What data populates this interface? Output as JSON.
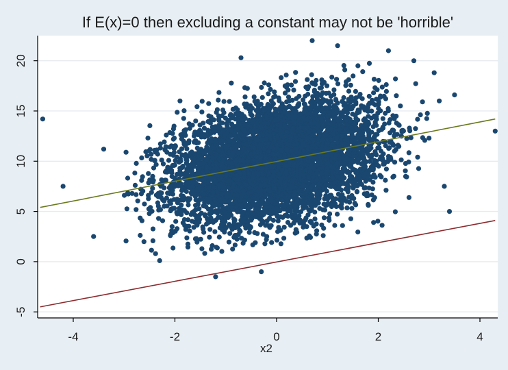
{
  "chart_data": {
    "type": "scatter",
    "title": "If E(x)=0 then excluding a constant may not be 'horrible'",
    "xlabel": "x2",
    "ylabel": "",
    "xlim": [
      -4.7,
      4.35
    ],
    "ylim": [
      -5.6,
      22.5
    ],
    "xticks": [
      -4,
      -2,
      0,
      2,
      4
    ],
    "yticks": [
      -5,
      0,
      5,
      10,
      15,
      20
    ],
    "grid": {
      "x": false,
      "y": true
    },
    "colors": {
      "points": "#1a476f",
      "fit_line_with_constant": "#6b7a1f",
      "fit_line_no_constant": "#8b2c2f",
      "plot_background": "#ffffff",
      "outer_background": "#e8eff4",
      "grid": "#e6ebef"
    },
    "series": [
      {
        "kind": "scatter",
        "n_points": 10000,
        "center": [
          0.0,
          10.0
        ],
        "sd": [
          1.0,
          3.0
        ],
        "correlation": 0.3,
        "outliers": [
          [
            -4.6,
            14.2
          ],
          [
            -4.2,
            7.5
          ],
          [
            -3.6,
            2.5
          ],
          [
            -3.4,
            11.2
          ],
          [
            -2.3,
            0.1
          ],
          [
            -1.9,
            16.0
          ],
          [
            -1.2,
            -1.5
          ],
          [
            -0.7,
            20.3
          ],
          [
            -0.3,
            -1.0
          ],
          [
            0.7,
            22.0
          ],
          [
            1.2,
            21.5
          ],
          [
            1.6,
            19.5
          ],
          [
            2.2,
            21.0
          ],
          [
            2.7,
            20.0
          ],
          [
            3.1,
            18.8
          ],
          [
            3.2,
            16.0
          ],
          [
            3.5,
            16.6
          ],
          [
            3.3,
            7.5
          ],
          [
            3.4,
            5.0
          ],
          [
            4.3,
            13.0
          ]
        ]
      },
      {
        "kind": "line",
        "x": [
          -4.65,
          4.3
        ],
        "y": [
          5.4,
          14.2
        ]
      },
      {
        "kind": "line",
        "x": [
          -4.65,
          4.3
        ],
        "y": [
          -4.5,
          4.1
        ]
      }
    ]
  }
}
